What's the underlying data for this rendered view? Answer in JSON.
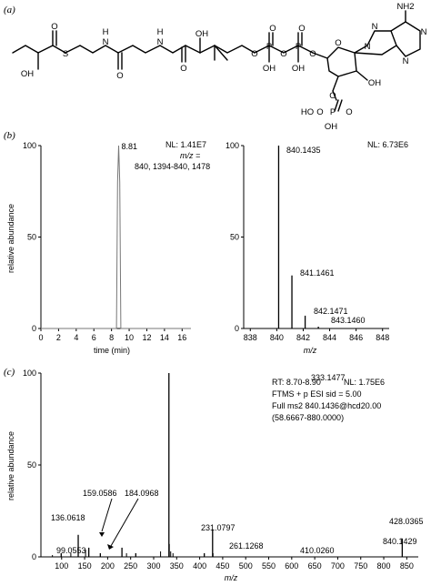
{
  "panels": {
    "a": "(a)",
    "b": "(b)",
    "c": "(c)"
  },
  "molecule": {
    "atoms": [
      "OH",
      "S",
      "O",
      "H",
      "N",
      "O",
      "H",
      "N",
      "OH",
      "O",
      "O",
      "P",
      "O",
      "OH",
      "O",
      "P",
      "O",
      "OH",
      "O",
      "O",
      "N",
      "N",
      "N",
      "N",
      "NH2",
      "OH",
      "O",
      "HO",
      "P",
      "O",
      "OH",
      "O"
    ]
  },
  "chart_data": [
    {
      "id": "b-left",
      "type": "line",
      "xlabel": "time (min)",
      "ylabel": "relative abundance",
      "xlim": [
        0,
        17
      ],
      "ylim": [
        0,
        100
      ],
      "xticks": [
        "0",
        "2",
        "4",
        "6",
        "8",
        "10",
        "12",
        "14",
        "16"
      ],
      "yticks": [
        "0",
        "50",
        "100"
      ],
      "peak": {
        "x": 8.81,
        "y": 100,
        "label": "8.81"
      },
      "annotation": {
        "nl": "NL: 1.41E7",
        "mz_label": "m/z =",
        "mz_values": "840, 1394-840, 1478"
      }
    },
    {
      "id": "b-right",
      "type": "bar",
      "xlabel": "m/z",
      "xlim": [
        837.5,
        848.5
      ],
      "ylim": [
        0,
        100
      ],
      "xticks": [
        "838",
        "840",
        "842",
        "844",
        "846",
        "848"
      ],
      "yticks": [
        "0",
        "50",
        "100"
      ],
      "peaks": [
        {
          "x": 840.1435,
          "y": 100,
          "label": "840.1435"
        },
        {
          "x": 841.1461,
          "y": 29,
          "label": "841.1461"
        },
        {
          "x": 842.1471,
          "y": 7,
          "label": "842.1471"
        },
        {
          "x": 843.146,
          "y": 1,
          "label": "843.1460"
        }
      ],
      "annotation": {
        "nl": "NL: 6.73E6"
      }
    },
    {
      "id": "c",
      "type": "bar",
      "xlabel": "m/z",
      "ylabel": "relative abundance",
      "xlim": [
        55,
        875
      ],
      "ylim": [
        0,
        100
      ],
      "xticks": [
        "100",
        "150",
        "200",
        "250",
        "300",
        "350",
        "400",
        "450",
        "500",
        "550",
        "600",
        "650",
        "700",
        "750",
        "800",
        "850"
      ],
      "yticks": [
        "0",
        "50",
        "100"
      ],
      "peaks": [
        {
          "x": 99.0553,
          "y": 2,
          "label": "99.0553"
        },
        {
          "x": 136.0618,
          "y": 12,
          "label": "136.0618"
        },
        {
          "x": 159.0586,
          "y": 5,
          "label": "159.0586"
        },
        {
          "x": 184.0968,
          "y": 2,
          "label": "184.0968"
        },
        {
          "x": 231.0797,
          "y": 5,
          "label": "231.0797"
        },
        {
          "x": 261.1268,
          "y": 2,
          "label": "261.1268"
        },
        {
          "x": 333.1477,
          "y": 100,
          "label": "333.1477"
        },
        {
          "x": 410.026,
          "y": 2,
          "label": "410.0260"
        },
        {
          "x": 428.0365,
          "y": 15,
          "label": "428.0365"
        },
        {
          "x": 840.1429,
          "y": 10,
          "label": "840.1429"
        }
      ],
      "minor_peaks": [
        {
          "x": 80,
          "y": 1
        },
        {
          "x": 120,
          "y": 2
        },
        {
          "x": 152,
          "y": 4
        },
        {
          "x": 241,
          "y": 2
        },
        {
          "x": 315,
          "y": 3
        },
        {
          "x": 334,
          "y": 7
        },
        {
          "x": 337,
          "y": 3
        },
        {
          "x": 342,
          "y": 2
        },
        {
          "x": 429,
          "y": 2
        }
      ],
      "annotation": {
        "rt": "RT: 8.70-8.90",
        "nl": "NL: 1.75E6",
        "line2": "FTMS + p ESI sid = 5.00",
        "line3": "Full ms2 840.1436@hcd20.00",
        "line4": "(58.6667-880.0000)"
      }
    }
  ]
}
